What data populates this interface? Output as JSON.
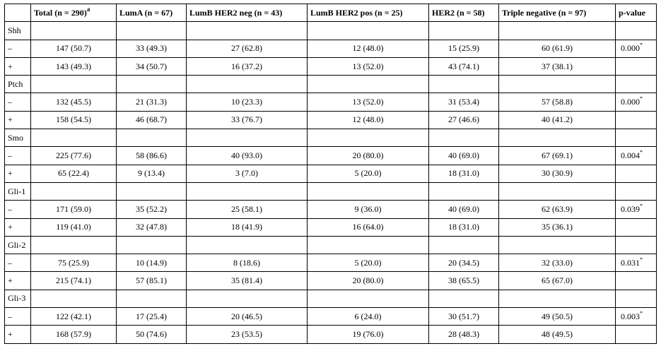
{
  "table": {
    "headers": [
      "",
      "Total (n = 290)",
      "LumA (n = 67)",
      "LumB HER2 neg (n = 43)",
      "LumB HER2 pos (n = 25)",
      "HER2 (n = 58)",
      "Triple negative (n = 97)",
      "p-value"
    ],
    "total_header_sup": "a",
    "pvalue_sup": "*",
    "groups": [
      {
        "name": "Shh",
        "rows": [
          {
            "sign": "–",
            "values": [
              "147 (50.7)",
              "33 (49.3)",
              "27 (62.8)",
              "12 (48.0)",
              "15 (25.9)",
              "60 (61.9)"
            ],
            "p": "0.000"
          },
          {
            "sign": "+",
            "values": [
              "143 (49.3)",
              "34 (50.7)",
              "16 (37.2)",
              "13 (52.0)",
              "43 (74.1)",
              "37 (38.1)"
            ],
            "p": ""
          }
        ]
      },
      {
        "name": "Ptch",
        "rows": [
          {
            "sign": "–",
            "values": [
              "132 (45.5)",
              "21 (31.3)",
              "10 (23.3)",
              "13 (52.0)",
              "31 (53.4)",
              "57 (58.8)"
            ],
            "p": "0.000"
          },
          {
            "sign": "+",
            "values": [
              "158 (54.5)",
              "46 (68.7)",
              "33 (76.7)",
              "12 (48.0)",
              "27 (46.6)",
              "40 (41.2)"
            ],
            "p": ""
          }
        ]
      },
      {
        "name": "Smo",
        "rows": [
          {
            "sign": "–",
            "values": [
              "225 (77.6)",
              "58 (86.6)",
              "40 (93.0)",
              "20 (80.0)",
              "40 (69.0)",
              "67 (69.1)"
            ],
            "p": "0.004"
          },
          {
            "sign": "+",
            "values": [
              "65 (22.4)",
              "9 (13.4)",
              "3 (7.0)",
              "5 (20.0)",
              "18 (31.0)",
              "30 (30.9)"
            ],
            "p": ""
          }
        ]
      },
      {
        "name": "Gli-1",
        "rows": [
          {
            "sign": "–",
            "values": [
              "171 (59.0)",
              "35 (52.2)",
              "25 (58.1)",
              "9 (36.0)",
              "40 (69.0)",
              "62 (63.9)"
            ],
            "p": "0.039"
          },
          {
            "sign": "+",
            "values": [
              "119 (41.0)",
              "32 (47.8)",
              "18 (41.9)",
              "16 (64.0)",
              "18 (31.0)",
              "35 (36.1)"
            ],
            "p": ""
          }
        ]
      },
      {
        "name": "Gli-2",
        "rows": [
          {
            "sign": "–",
            "values": [
              "75 (25.9)",
              "10 (14.9)",
              "8 (18.6)",
              "5 (20.0)",
              "20 (34.5)",
              "32 (33.0)"
            ],
            "p": "0.031"
          },
          {
            "sign": "+",
            "values": [
              "215 (74.1)",
              "57 (85.1)",
              "35 (81.4)",
              "20 (80.0)",
              "38 (65.5)",
              "65 (67.0)"
            ],
            "p": ""
          }
        ]
      },
      {
        "name": "Gli-3",
        "rows": [
          {
            "sign": "–",
            "values": [
              "122 (42.1)",
              "17 (25.4)",
              "20 (46.5)",
              "6 (24.0)",
              "30 (51.7)",
              "49 (50.5)"
            ],
            "p": "0.003"
          },
          {
            "sign": "+",
            "values": [
              "168 (57.9)",
              "50 (74.6)",
              "23 (53.5)",
              "19 (76.0)",
              "28 (48.3)",
              "48 (49.5)"
            ],
            "p": ""
          }
        ]
      }
    ]
  }
}
